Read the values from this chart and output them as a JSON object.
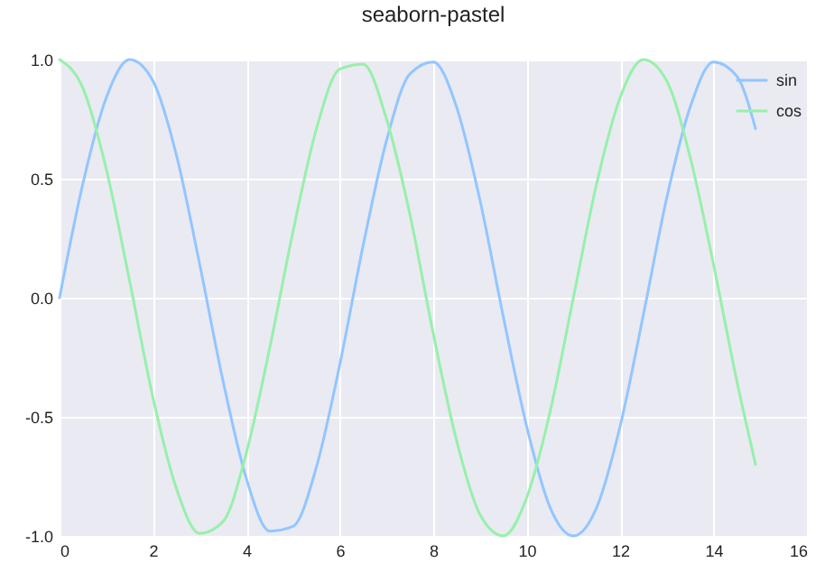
{
  "chart_data": {
    "type": "line",
    "title": "seaborn-pastel",
    "x": [
      0,
      0.5,
      1,
      1.5,
      2,
      2.5,
      3,
      3.5,
      4,
      4.5,
      5,
      5.5,
      6,
      6.5,
      7,
      7.5,
      8,
      8.5,
      9,
      9.5,
      10,
      10.5,
      11,
      11.5,
      12,
      12.5,
      13,
      13.5,
      14,
      14.5,
      14.9
    ],
    "series": [
      {
        "name": "sin",
        "color": "#92c6ff",
        "values": [
          0,
          0.48,
          0.84,
          1.0,
          0.91,
          0.6,
          0.14,
          -0.35,
          -0.76,
          -0.98,
          -0.96,
          -0.71,
          -0.28,
          0.22,
          0.66,
          0.94,
          0.99,
          0.8,
          0.41,
          -0.08,
          -0.54,
          -0.88,
          -1.0,
          -0.88,
          -0.54,
          -0.07,
          0.42,
          0.8,
          0.99,
          0.93,
          0.71
        ]
      },
      {
        "name": "cos",
        "color": "#97f0aa",
        "values": [
          1.0,
          0.88,
          0.54,
          0.07,
          -0.42,
          -0.8,
          -0.99,
          -0.94,
          -0.65,
          -0.21,
          0.28,
          0.71,
          0.96,
          0.98,
          0.75,
          0.35,
          -0.15,
          -0.6,
          -0.91,
          -1.0,
          -0.84,
          -0.48,
          0.0,
          0.48,
          0.84,
          1.0,
          0.91,
          0.59,
          0.14,
          -0.35,
          -0.7
        ]
      }
    ],
    "xlim": [
      0,
      16
    ],
    "xticks": [
      0,
      2,
      4,
      6,
      8,
      10,
      12,
      14,
      16
    ],
    "ylim": [
      -1,
      1
    ],
    "yticks": [
      {
        "value": -1,
        "label": "-1.0"
      },
      {
        "value": -0.5,
        "label": "-0.5"
      },
      {
        "value": 0,
        "label": "0.0"
      },
      {
        "value": 0.5,
        "label": "0.5"
      },
      {
        "value": 1,
        "label": "1.0"
      }
    ],
    "grid": true,
    "legend": "top right",
    "marker": "none",
    "line_style": "solid"
  }
}
